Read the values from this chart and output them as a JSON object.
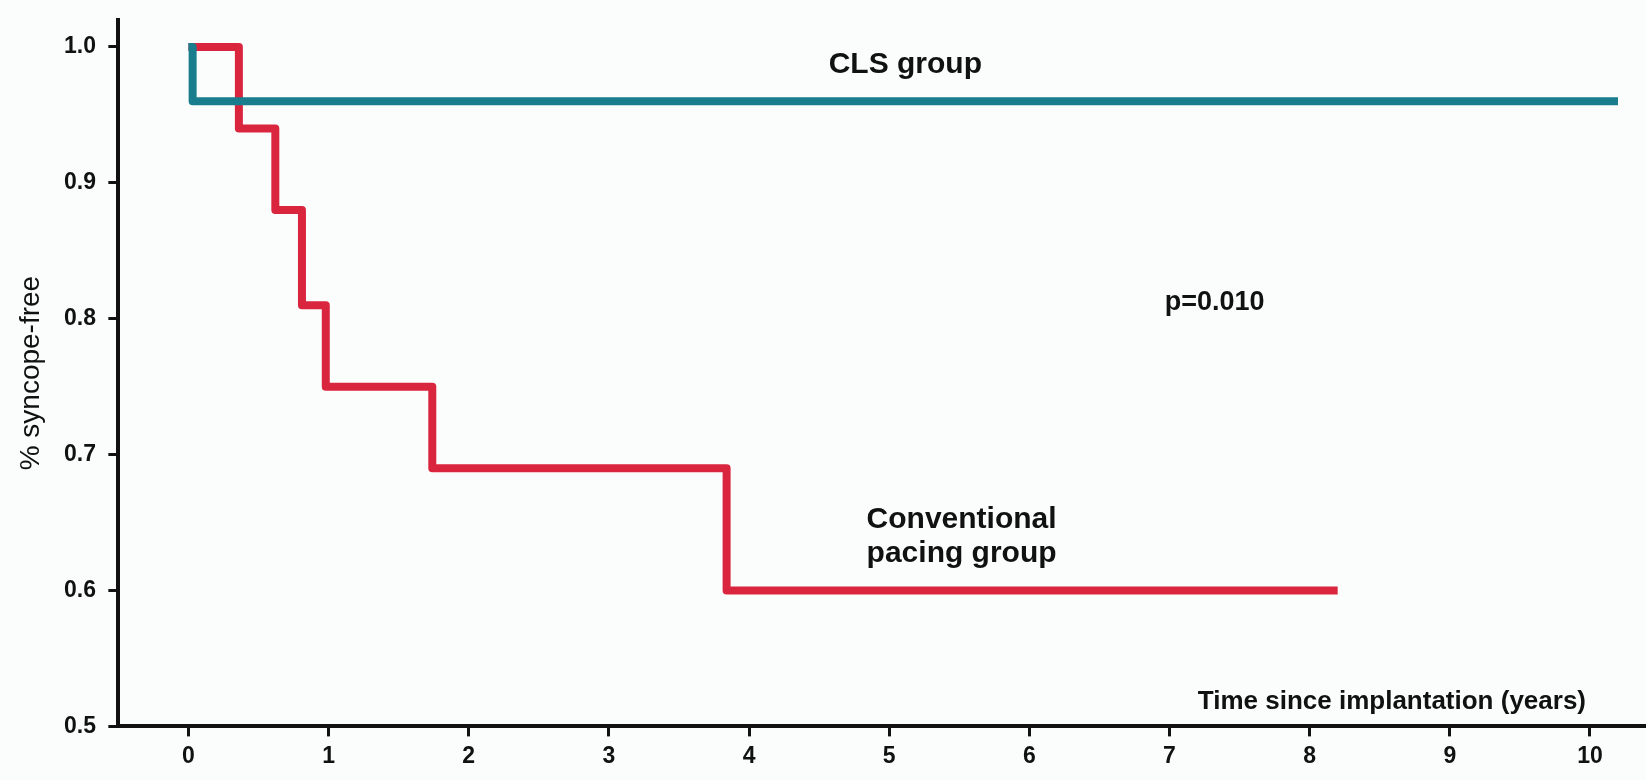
{
  "chart_data": {
    "type": "step",
    "xlabel": "Time since implantation (years)",
    "ylabel": "% syncope-free",
    "series": [
      {
        "name": "CLS group",
        "color": "#1a7d8e",
        "x": [
          0,
          0.03,
          10.2
        ],
        "values": [
          1.0,
          0.96,
          0.96
        ]
      },
      {
        "name": "Conventional pacing group",
        "color": "#d9263e",
        "x": [
          0,
          0.36,
          0.62,
          0.81,
          0.98,
          1.74,
          3.84,
          8.2
        ],
        "values": [
          1.0,
          0.94,
          0.88,
          0.81,
          0.75,
          0.69,
          0.6,
          0.6
        ]
      }
    ],
    "annotations": [
      "p=0.010"
    ],
    "xlim": [
      -0.5,
      10.4
    ],
    "xticks": [
      0,
      1,
      2,
      3,
      4,
      5,
      6,
      7,
      8,
      9,
      10
    ],
    "ylim": [
      0.5,
      1.02
    ],
    "yticks": [
      {
        "value": 0.5,
        "label": "0.5"
      },
      {
        "value": 0.6,
        "label": "0.6"
      },
      {
        "value": 0.7,
        "label": "0.7"
      },
      {
        "value": 0.8,
        "label": "0.8"
      },
      {
        "value": 0.9,
        "label": "0.9"
      },
      {
        "value": 1,
        "label": "1.0"
      }
    ],
    "grid": false,
    "legend": false,
    "marker": "none",
    "line_style": "solid"
  }
}
